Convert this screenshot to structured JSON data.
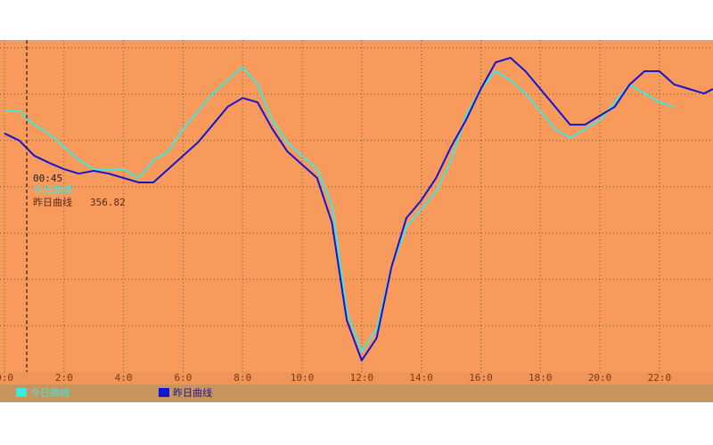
{
  "chart_data": {
    "type": "line",
    "x": [
      0,
      0.5,
      1,
      1.5,
      2,
      2.5,
      3,
      3.5,
      4,
      4.5,
      5,
      5.5,
      6,
      6.5,
      7,
      7.5,
      8,
      8.5,
      9,
      9.5,
      10,
      10.5,
      11,
      11.5,
      12,
      12.5,
      13,
      13.5,
      14,
      14.5,
      15,
      15.5,
      16,
      16.5,
      17,
      17.5,
      18,
      18.5,
      19,
      19.5,
      20,
      20.5,
      21,
      21.5,
      22,
      22.5,
      23,
      23.5,
      23.8
    ],
    "series": [
      {
        "name": "今日曲线",
        "color": "#3ee8dc",
        "values": [
          378.9,
          378.9,
          370.2,
          364.5,
          355.8,
          347.2,
          341.4,
          341.4,
          341.4,
          335.7,
          347.2,
          352.9,
          367.4,
          378.9,
          390.4,
          399.1,
          407.7,
          396.2,
          373.1,
          358.7,
          350.1,
          341.4,
          318.4,
          249.2,
          223.3,
          237.7,
          278,
          304,
          315.5,
          327,
          347.2,
          376,
          393.3,
          404.8,
          399.1,
          390.4,
          378.9,
          367.4,
          361.6,
          367.4,
          373.1,
          384.7,
          396.2,
          390.4,
          384.7,
          381.8,
          null,
          null,
          null
        ]
      },
      {
        "name": "昨日曲线",
        "color": "#1414d2",
        "values": [
          364.5,
          359.9,
          350.1,
          345.5,
          341.4,
          338.5,
          340.3,
          338.5,
          335.7,
          332.8,
          332.8,
          341.4,
          350.1,
          358.7,
          370.2,
          381.8,
          387.5,
          384.7,
          367.4,
          352.9,
          344.3,
          335.7,
          306.8,
          243.4,
          217.5,
          231.9,
          278,
          309.7,
          321.2,
          335.7,
          355.8,
          373.1,
          393.3,
          410.6,
          413.5,
          404.8,
          393.3,
          381.8,
          370.2,
          370.2,
          376,
          381.8,
          396.2,
          404.8,
          404.8,
          396.2,
          393.3,
          390.4,
          393.3
        ]
      }
    ],
    "xlim": [
      -0.15,
      23.8
    ],
    "xticks": [
      {
        "value": 0,
        "label": "0:0"
      },
      {
        "value": 2,
        "label": "2:0"
      },
      {
        "value": 4,
        "label": "4:0"
      },
      {
        "value": 6,
        "label": "6:0"
      },
      {
        "value": 8,
        "label": "8:0"
      },
      {
        "value": 10,
        "label": "10:0"
      },
      {
        "value": 12,
        "label": "12:0"
      },
      {
        "value": 14,
        "label": "14:0"
      },
      {
        "value": 16,
        "label": "16:0"
      },
      {
        "value": 18,
        "label": "18:0"
      },
      {
        "value": 20,
        "label": "20:0"
      },
      {
        "value": 22,
        "label": "22:0"
      }
    ],
    "ylim": [
      210,
      425
    ],
    "yticks": [
      240,
      270,
      300,
      330,
      360,
      390,
      420
    ],
    "grid": true,
    "cursor": {
      "x": 0.75,
      "time": "00:45",
      "value": 356.82
    }
  }
}
